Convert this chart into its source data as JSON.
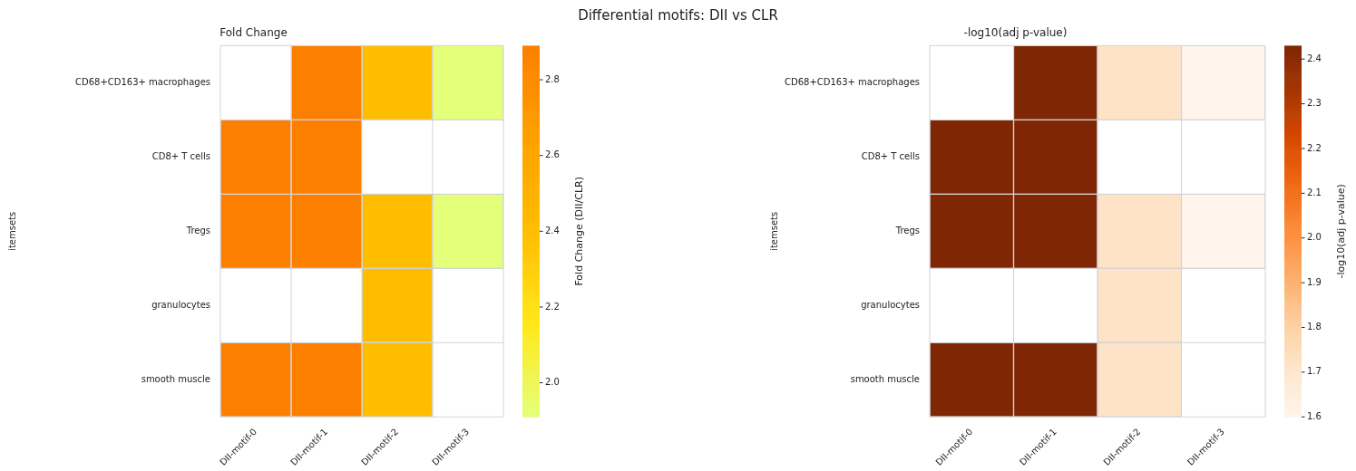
{
  "chart_data": [
    {
      "type": "heatmap",
      "title": "Fold Change",
      "ylabel": "itemsets",
      "clabel": "Fold Change (DII/CLR)",
      "annotations": [
        "Differential motifs: DII vs CLR"
      ],
      "categories": [
        "DII-motif-0",
        "DII-motif-1",
        "DII-motif-2",
        "DII-motif-3"
      ],
      "y_categories": [
        "CD68+CD163+ macrophages",
        "CD8+ T cells",
        "Tregs",
        "granulocytes",
        "smooth muscle"
      ],
      "cells": [
        [
          null,
          2.89,
          2.4,
          1.91
        ],
        [
          2.89,
          2.89,
          null,
          null
        ],
        [
          2.89,
          2.89,
          2.4,
          1.91
        ],
        [
          null,
          null,
          2.4,
          null
        ],
        [
          2.89,
          2.89,
          2.4,
          null
        ]
      ],
      "clim": [
        1.91,
        2.89
      ],
      "cticks": [
        {
          "value": 2,
          "label": "2.0"
        },
        2.2,
        2.4,
        2.6,
        2.8
      ]
    },
    {
      "type": "heatmap",
      "title": "-log10(adj p-value)",
      "ylabel": "itemsets",
      "clabel": "-log10(adj p-value)",
      "categories": [
        "DII-motif-0",
        "DII-motif-1",
        "DII-motif-2",
        "DII-motif-3"
      ],
      "y_categories": [
        "CD68+CD163+ macrophages",
        "CD8+ T cells",
        "Tregs",
        "granulocytes",
        "smooth muscle"
      ],
      "cells": [
        [
          null,
          2.43,
          1.72,
          1.6
        ],
        [
          2.43,
          2.43,
          null,
          null
        ],
        [
          2.43,
          2.43,
          1.72,
          1.6
        ],
        [
          null,
          null,
          1.72,
          null
        ],
        [
          2.43,
          2.43,
          1.72,
          null
        ]
      ],
      "clim": [
        1.6,
        2.43
      ],
      "cticks": [
        1.6,
        1.7,
        1.8,
        1.9,
        {
          "value": 2,
          "label": "2.0"
        },
        2.1,
        2.2,
        2.3,
        2.4
      ]
    }
  ]
}
